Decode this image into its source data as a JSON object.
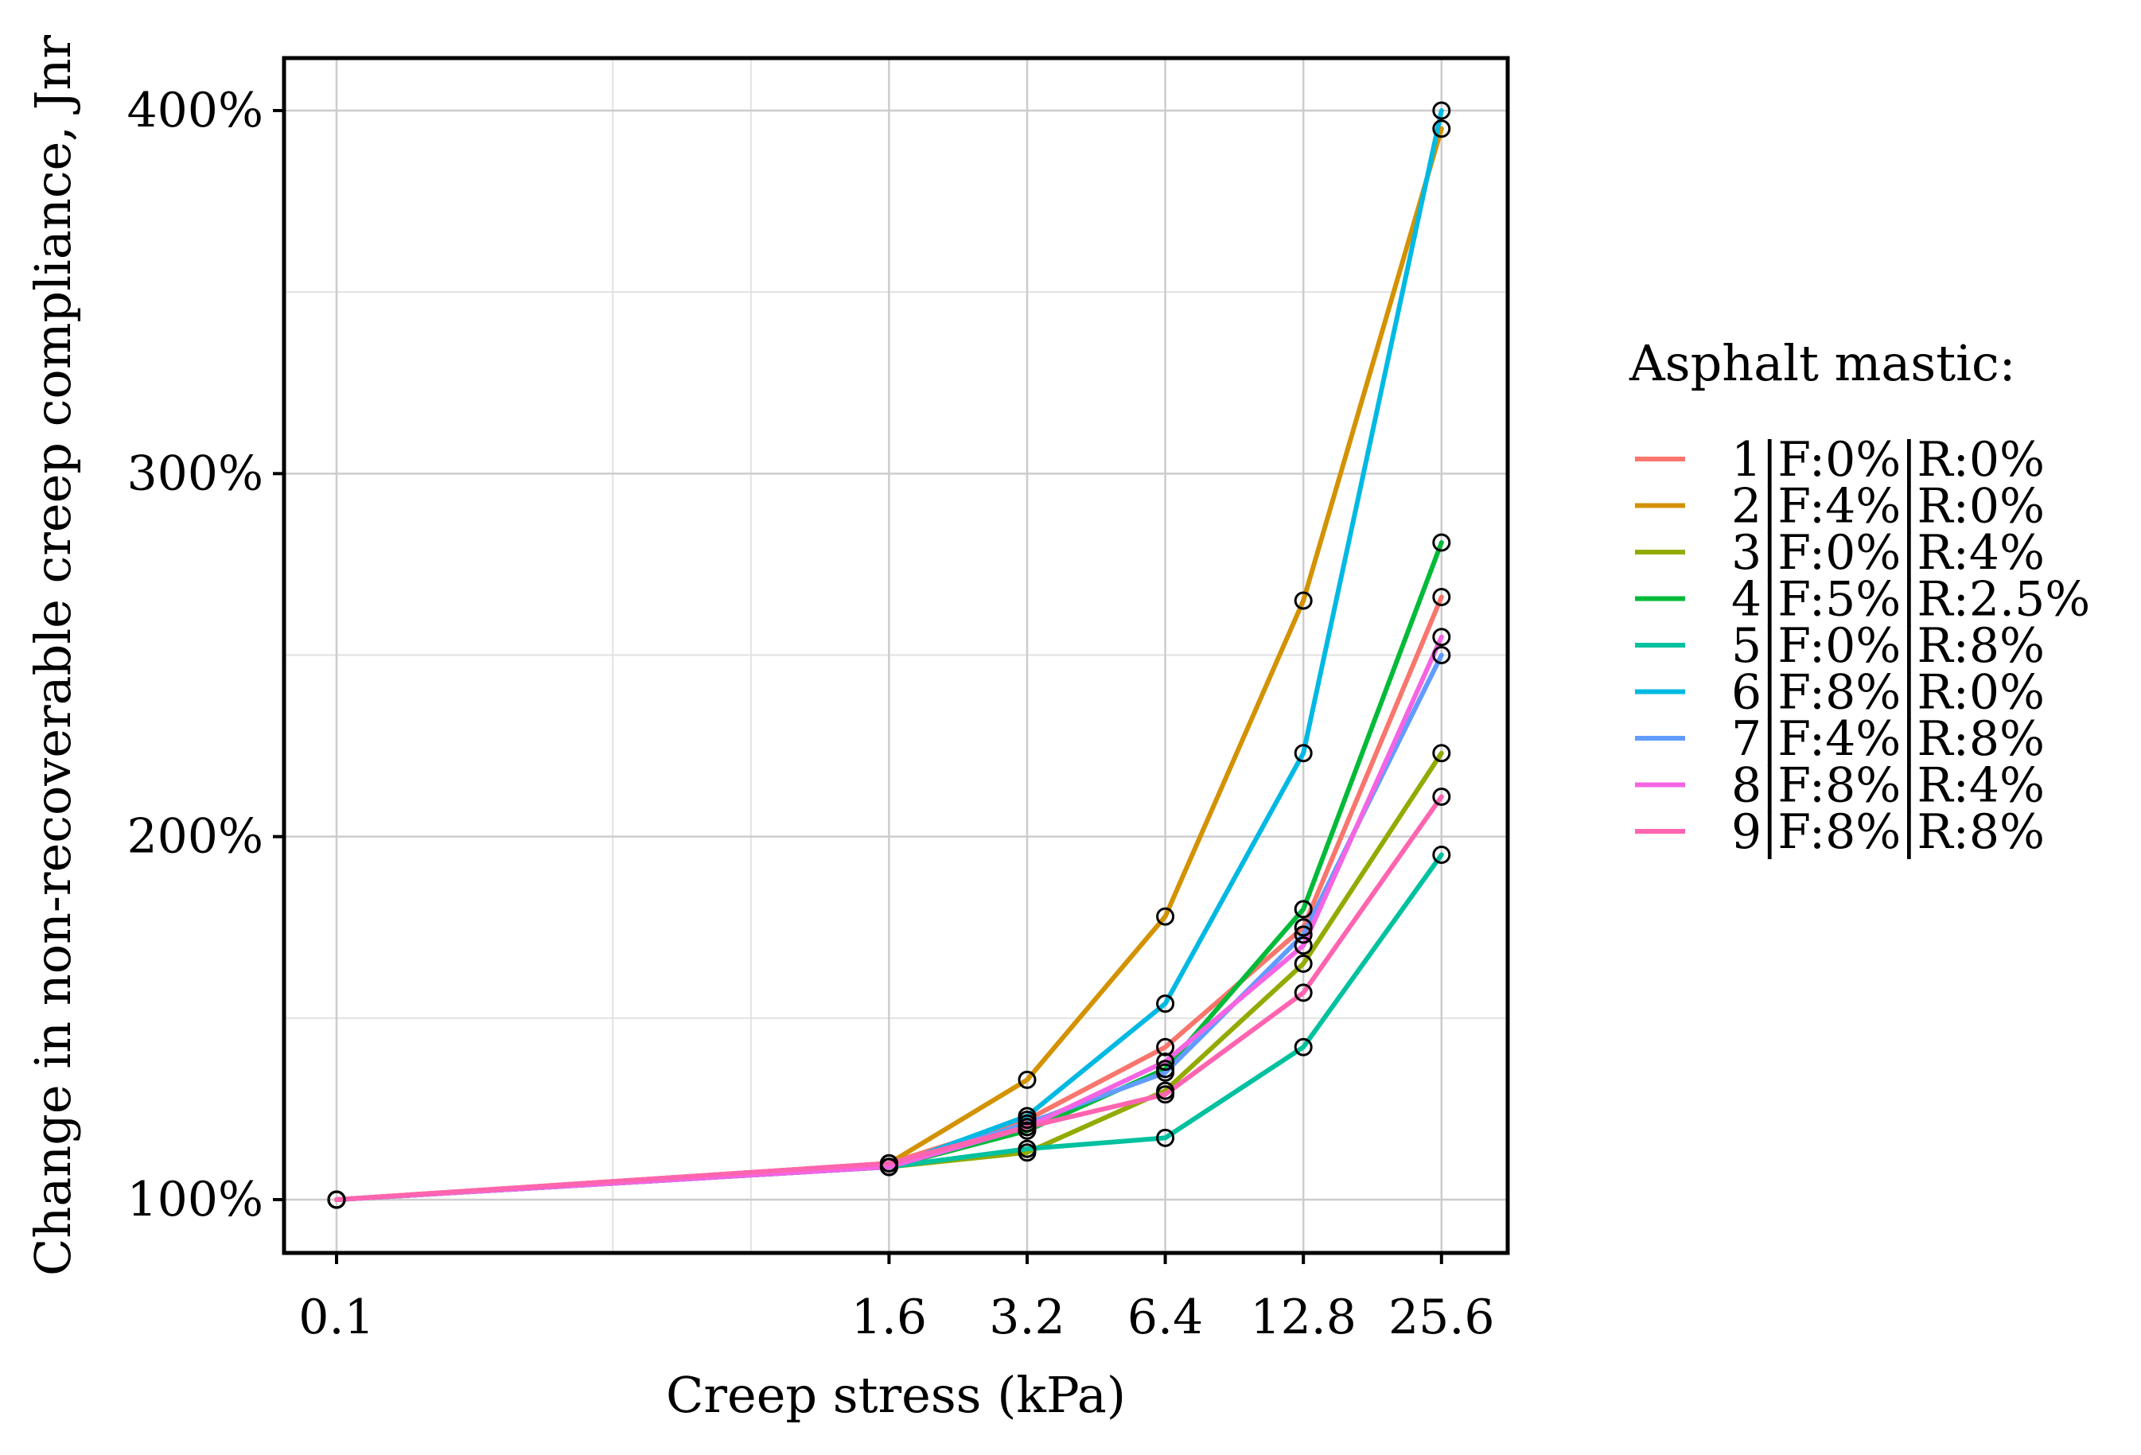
{
  "chart_data": {
    "type": "line",
    "title": "",
    "xlabel": "Creep stress (kPa)",
    "ylabel": "Change in non-recoverable creep compliance, Jnr",
    "x_scale": "log2",
    "xlim": [
      0.1,
      25.6
    ],
    "ylim": [
      85,
      415
    ],
    "x_ticks": [
      0.1,
      1.6,
      3.2,
      6.4,
      12.8,
      25.6
    ],
    "x_tick_labels": [
      "0.1",
      "1.6",
      "3.2",
      "6.4",
      "12.8",
      "25.6"
    ],
    "x_minor_grid": [
      0.4,
      0.8
    ],
    "y_ticks": [
      100,
      200,
      300,
      400
    ],
    "y_tick_labels": [
      "100%",
      "200%",
      "300%",
      "400%"
    ],
    "y_minor_grid": [
      150,
      250,
      350
    ],
    "grid": true,
    "legend_title": "Asphalt mastic:",
    "legend_position": "right",
    "x": [
      0.1,
      1.6,
      3.2,
      6.4,
      12.8,
      25.6
    ],
    "series": [
      {
        "name": "1|F:0%|R:0%",
        "color": "#F8766D",
        "values": [
          100,
          110,
          122,
          142,
          175,
          266
        ]
      },
      {
        "name": "2|F:4%|R:0%",
        "color": "#D39200",
        "values": [
          100,
          110,
          133,
          178,
          265,
          395
        ]
      },
      {
        "name": "3|F:0%|R:4%",
        "color": "#93AA00",
        "values": [
          100,
          109,
          113,
          130,
          165,
          223
        ]
      },
      {
        "name": "4|F:5%|R:2.5%",
        "color": "#00BA38",
        "values": [
          100,
          109,
          119,
          136,
          180,
          281
        ]
      },
      {
        "name": "5|F:0%|R:8%",
        "color": "#00C19F",
        "values": [
          100,
          109,
          114,
          117,
          142,
          195
        ]
      },
      {
        "name": "6|F:8%|R:0%",
        "color": "#00B9E3",
        "values": [
          100,
          109,
          123,
          154,
          223,
          400
        ]
      },
      {
        "name": "7|F:4%|R:8%",
        "color": "#619CFF",
        "values": [
          100,
          109,
          121,
          135,
          173,
          250
        ]
      },
      {
        "name": "8|F:8%|R:4%",
        "color": "#F564E3",
        "values": [
          100,
          109,
          120,
          138,
          170,
          255
        ]
      },
      {
        "name": "9|F:8%|R:8%",
        "color": "#FF64B0",
        "values": [
          100,
          110,
          120,
          129,
          157,
          211
        ]
      }
    ]
  }
}
